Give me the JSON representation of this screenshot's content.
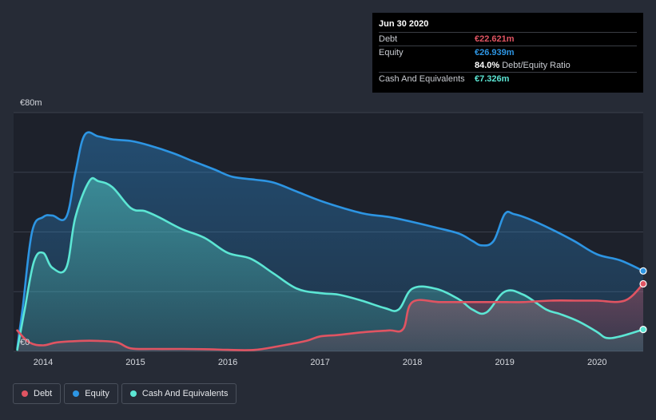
{
  "tooltip": {
    "date": "Jun 30 2020",
    "debt_label": "Debt",
    "debt_value": "€22.621m",
    "equity_label": "Equity",
    "equity_value": "€26.939m",
    "ratio_value": "84.0%",
    "ratio_label": "Debt/Equity Ratio",
    "cash_label": "Cash And Equivalents",
    "cash_value": "€7.326m"
  },
  "legend": {
    "debt": "Debt",
    "equity": "Equity",
    "cash": "Cash And Equivalents"
  },
  "colors": {
    "debt": "#e05462",
    "equity": "#2d95e3",
    "cash": "#5ce6d4",
    "background": "#262b36",
    "plot_background": "#1d212b"
  },
  "chart_data": {
    "type": "area",
    "title": "",
    "xlabel": "",
    "ylabel": "",
    "ylim": [
      0,
      80
    ],
    "xlim": [
      2013.68,
      2020.5
    ],
    "y_ticks": [
      {
        "value": 0,
        "label": "€0"
      },
      {
        "value": 80,
        "label": "€80m"
      }
    ],
    "gridlines": [
      0,
      20,
      40,
      60,
      80
    ],
    "x_ticks": [
      {
        "value": 2014,
        "label": "2014"
      },
      {
        "value": 2015,
        "label": "2015"
      },
      {
        "value": 2016,
        "label": "2016"
      },
      {
        "value": 2017,
        "label": "2017"
      },
      {
        "value": 2018,
        "label": "2018"
      },
      {
        "value": 2019,
        "label": "2019"
      },
      {
        "value": 2020,
        "label": "2020"
      }
    ],
    "series": [
      {
        "name": "Equity",
        "x": [
          2013.72,
          2013.78,
          2013.88,
          2014.0,
          2014.1,
          2014.25,
          2014.35,
          2014.45,
          2014.6,
          2014.75,
          2014.95,
          2015.15,
          2015.4,
          2015.6,
          2015.85,
          2016.05,
          2016.3,
          2016.5,
          2016.75,
          2017.0,
          2017.25,
          2017.5,
          2017.75,
          2017.98,
          2018.25,
          2018.5,
          2018.65,
          2018.75,
          2018.88,
          2019.0,
          2019.1,
          2019.25,
          2019.5,
          2019.75,
          2020.0,
          2020.25,
          2020.5
        ],
        "values": [
          1,
          15,
          40,
          45,
          45.5,
          45,
          60,
          72.5,
          72,
          71,
          70.5,
          69,
          66.5,
          64,
          61,
          58.5,
          57.5,
          56.5,
          53.5,
          50.5,
          48,
          46,
          45,
          43.5,
          41.5,
          39.5,
          37,
          35.5,
          37,
          46,
          46,
          44.5,
          41,
          37,
          32.5,
          30.5,
          26.939
        ]
      },
      {
        "name": "Cash And Equivalents",
        "x": [
          2013.72,
          2013.8,
          2013.9,
          2014.0,
          2014.1,
          2014.25,
          2014.35,
          2014.5,
          2014.6,
          2014.75,
          2014.95,
          2015.1,
          2015.25,
          2015.5,
          2015.75,
          2016.0,
          2016.25,
          2016.5,
          2016.75,
          2017.0,
          2017.2,
          2017.45,
          2017.7,
          2017.85,
          2018.0,
          2018.25,
          2018.5,
          2018.65,
          2018.8,
          2019.0,
          2019.2,
          2019.45,
          2019.6,
          2019.8,
          2020.0,
          2020.1,
          2020.25,
          2020.5
        ],
        "values": [
          0.5,
          14,
          30,
          33,
          28,
          28,
          45,
          57,
          57,
          55,
          48,
          47,
          45,
          41,
          38,
          33,
          31,
          26,
          21,
          19.5,
          19,
          17,
          14.5,
          14,
          21,
          21,
          17.5,
          14,
          13,
          20,
          19,
          14,
          12.5,
          10,
          6.5,
          4.5,
          5,
          7.326
        ]
      },
      {
        "name": "Debt",
        "x": [
          2013.72,
          2013.85,
          2014.0,
          2014.15,
          2014.4,
          2014.6,
          2014.8,
          2014.95,
          2015.2,
          2015.5,
          2015.8,
          2016.0,
          2016.3,
          2016.6,
          2016.85,
          2017.0,
          2017.2,
          2017.5,
          2017.75,
          2017.9,
          2018.0,
          2018.3,
          2018.6,
          2018.9,
          2019.0,
          2019.2,
          2019.5,
          2019.8,
          2020.0,
          2020.3,
          2020.5
        ],
        "values": [
          7,
          3,
          2,
          3,
          3.5,
          3.5,
          3,
          1,
          0.8,
          0.8,
          0.7,
          0.5,
          0.5,
          2,
          3.5,
          5,
          5.5,
          6.5,
          7,
          7.5,
          16.5,
          16.5,
          16.5,
          16.5,
          16.5,
          16.5,
          17,
          17,
          17,
          17,
          22.621
        ]
      }
    ]
  }
}
